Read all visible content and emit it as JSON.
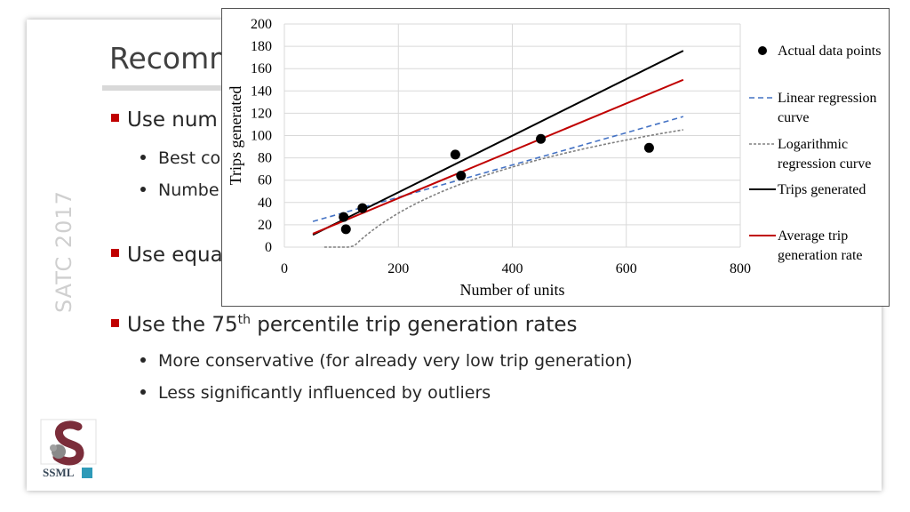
{
  "slide": {
    "title": "Recomm",
    "sidebar_text": "SATC 2017",
    "bullets": [
      {
        "text": "Use num"
      },
      {
        "text": "Use equa"
      },
      {
        "text_before": "Use the 75",
        "sup": "th",
        "text_after": " percentile trip generation rates"
      }
    ],
    "sub_bullets": [
      {
        "text": "Best co"
      },
      {
        "text": "Numbe"
      },
      {
        "text": "More conservative (for already very low trip generation)"
      },
      {
        "text": "Less significantly influenced by outliers"
      }
    ],
    "logo_text": "SSML"
  },
  "chart_data": {
    "type": "scatter",
    "title": "",
    "xlabel": "Number of units",
    "ylabel": "Trips generated",
    "xlim": [
      0,
      800
    ],
    "ylim": [
      0,
      200
    ],
    "x_ticks": [
      0,
      200,
      400,
      600,
      800
    ],
    "y_ticks": [
      0,
      20,
      40,
      60,
      80,
      100,
      120,
      140,
      160,
      180,
      200
    ],
    "grid": true,
    "legend_position": "right",
    "points": {
      "name": "Actual data points",
      "x": [
        104,
        108,
        137,
        300,
        310,
        450,
        640
      ],
      "y": [
        27,
        16,
        35,
        83,
        64,
        97,
        89
      ]
    },
    "lines": [
      {
        "name": "Linear regression curve",
        "kind": "linear",
        "color": "#4472c4",
        "dash": "dash",
        "x": [
          50,
          700
        ],
        "y": [
          23,
          117
        ]
      },
      {
        "name": "Logarithmic regression curve",
        "kind": "log",
        "color": "#808080",
        "dash": "dot",
        "a": 59.7,
        "b": -285.9,
        "x_range": [
          70,
          700
        ]
      },
      {
        "name": "Trips generated",
        "kind": "linear",
        "color": "#000000",
        "dash": "solid",
        "x": [
          50,
          700
        ],
        "y": [
          11,
          176
        ]
      },
      {
        "name": "Average trip generation rate",
        "kind": "linear",
        "color": "#c00000",
        "dash": "solid",
        "x": [
          50,
          700
        ],
        "y": [
          12,
          150
        ]
      }
    ],
    "legend": [
      {
        "label": "Actual data points",
        "marker": "dot",
        "color": "#000000"
      },
      {
        "label": "Linear regression curve",
        "marker": "dash",
        "color": "#4472c4"
      },
      {
        "label": "Logarithmic regression curve",
        "marker": "dot-line",
        "color": "#808080"
      },
      {
        "label": "Trips generated",
        "marker": "line",
        "color": "#000000"
      },
      {
        "label": "Average trip generation rate",
        "marker": "line",
        "color": "#c00000"
      }
    ]
  }
}
